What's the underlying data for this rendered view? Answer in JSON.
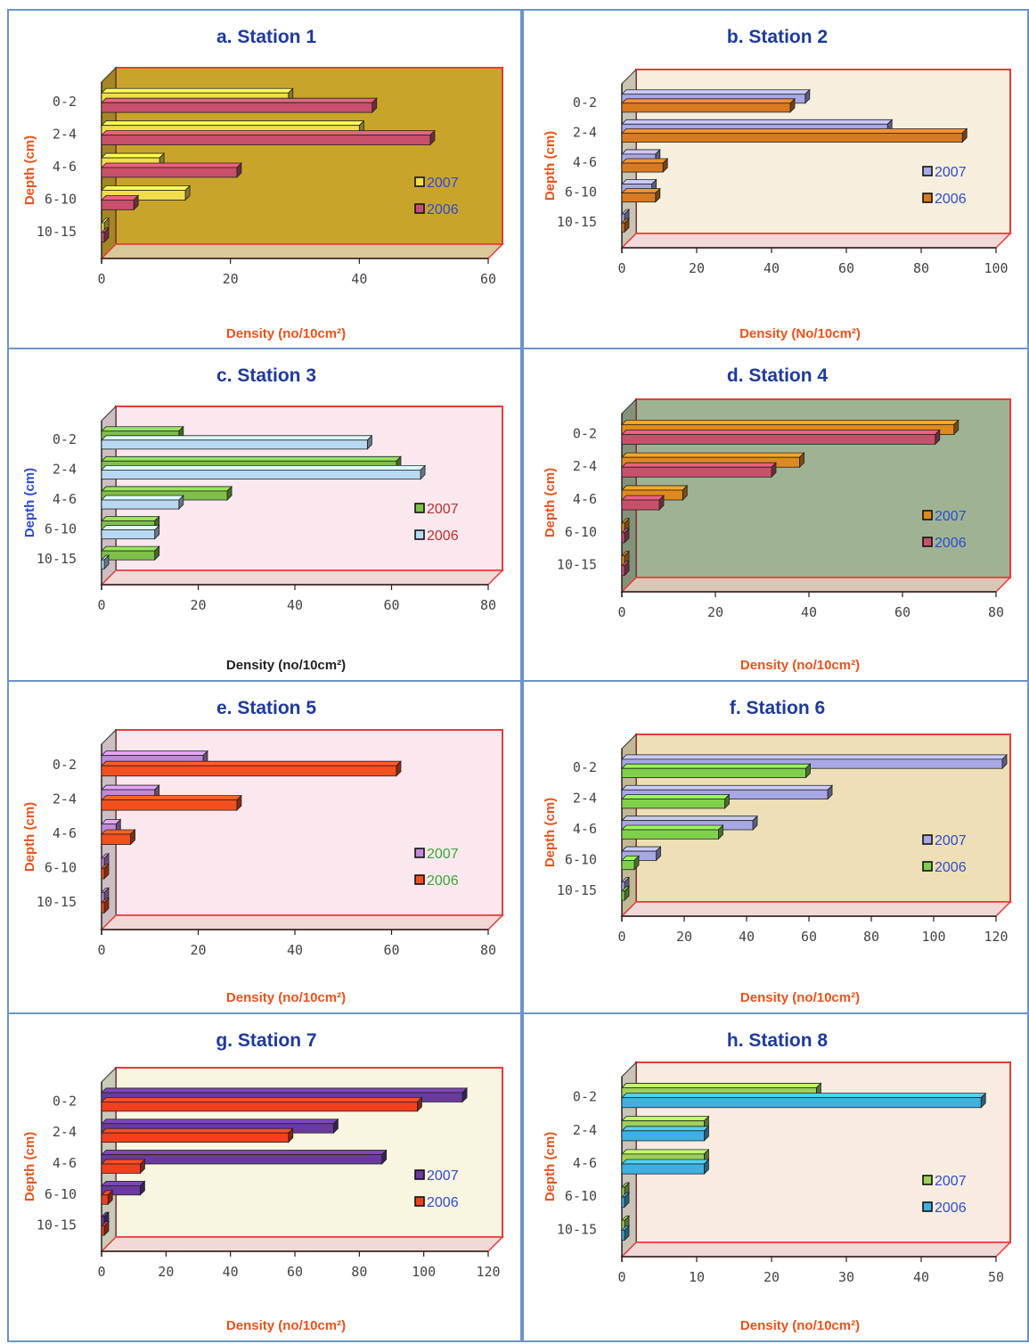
{
  "figure": {
    "panels": [
      {
        "title": "a. Station 1",
        "xlabel": "Density (no/10cm²)",
        "ylabel": "Depth (cm)",
        "label_color": "#e8531c",
        "wall": "#c9a42a",
        "floor": "#d8c89a",
        "frame": "#e83a3a",
        "legend_text_color": "#2d4bd1"
      },
      {
        "title": "b. Station 2",
        "xlabel": "Density (No/10cm²)",
        "ylabel": "Depth (cm)",
        "label_color": "#e8531c",
        "wall": "#f6efdd",
        "floor": "#f0d9d6",
        "frame": "#e83a3a",
        "legend_text_color": "#2d4bd1"
      },
      {
        "title": "c. Station 3",
        "xlabel": "Density (no/10cm²)",
        "ylabel": "Depth (cm)",
        "label_color": "#2d4bd1",
        "xlabel_color": "#222222",
        "wall": "#fbe8ee",
        "floor": "#f0d9d6",
        "frame": "#e83a3a",
        "legend_text_color": "#c22c2c"
      },
      {
        "title": "d. Station 4",
        "xlabel": "Density (no/10cm²)",
        "ylabel": "Depth (cm)",
        "label_color": "#e8531c",
        "wall": "#9fb393",
        "floor": "#d8c7b5",
        "frame": "#e83a3a",
        "legend_text_color": "#2d4bd1"
      },
      {
        "title": "e. Station 5",
        "xlabel": "Density (no/10cm²)",
        "ylabel": "Depth (cm)",
        "label_color": "#e8531c",
        "wall": "#fbe8ee",
        "floor": "#f0d9d6",
        "frame": "#e83a3a",
        "legend_text_color": "#3aa73a"
      },
      {
        "title": "f. Station 6",
        "xlabel": "Density (no/10cm²)",
        "ylabel": "Depth (cm)",
        "label_color": "#e8531c",
        "wall": "#eedfb6",
        "floor": "#f0d9d6",
        "frame": "#e83a3a",
        "legend_text_color": "#2d4bd1"
      },
      {
        "title": "g. Station 7",
        "xlabel": "Density (no/10cm²)",
        "ylabel": "Depth (cm)",
        "label_color": "#e8531c",
        "wall": "#f8f6e0",
        "floor": "#f0d9d6",
        "frame": "#e83a3a",
        "legend_text_color": "#2d4bd1"
      },
      {
        "title": "h. Station 8",
        "xlabel": "Density (no/10cm²)",
        "ylabel": "Depth (cm)",
        "label_color": "#e8531c",
        "wall": "#f8ece0",
        "floor": "#f0d9d6",
        "frame": "#e83a3a",
        "legend_text_color": "#2d4bd1"
      }
    ]
  },
  "chart_data": [
    {
      "type": "bar",
      "orientation": "horizontal",
      "title": "a. Station 1",
      "xlabel": "Density (no/10cm²)",
      "ylabel": "Depth (cm)",
      "categories": [
        "0-2",
        "2-4",
        "4-6",
        "6-10",
        "10-15"
      ],
      "xlim": [
        0,
        60
      ],
      "xticks": [
        0,
        20,
        40,
        60
      ],
      "legend": "right",
      "series": [
        {
          "name": "2007",
          "color": "#f2dd4a",
          "values": [
            29,
            40,
            9,
            13,
            0
          ]
        },
        {
          "name": "2006",
          "color": "#c8506a",
          "values": [
            42,
            51,
            21,
            5,
            0
          ]
        }
      ]
    },
    {
      "type": "bar",
      "orientation": "horizontal",
      "title": "b. Station 2",
      "xlabel": "Density (No/10cm²)",
      "ylabel": "Depth (cm)",
      "categories": [
        "0-2",
        "2-4",
        "4-6",
        "6-10",
        "10-15"
      ],
      "xlim": [
        0,
        100
      ],
      "xticks": [
        0,
        20,
        40,
        60,
        80,
        100
      ],
      "legend": "right",
      "series": [
        {
          "name": "2007",
          "color": "#a8a8e6",
          "values": [
            49,
            71,
            9,
            8,
            0
          ]
        },
        {
          "name": "2006",
          "color": "#d97a22",
          "values": [
            45,
            91,
            11,
            9,
            0
          ]
        }
      ]
    },
    {
      "type": "bar",
      "orientation": "horizontal",
      "title": "c. Station 3",
      "xlabel": "Density (no/10cm²)",
      "ylabel": "Depth (cm)",
      "categories": [
        "0-2",
        "2-4",
        "4-6",
        "6-10",
        "10-15"
      ],
      "xlim": [
        0,
        80
      ],
      "xticks": [
        0,
        20,
        40,
        60,
        80
      ],
      "legend": "right",
      "series": [
        {
          "name": "2007",
          "color": "#7fbf4a",
          "values": [
            16,
            61,
            26,
            11,
            11
          ]
        },
        {
          "name": "2006",
          "color": "#b9d8f2",
          "values": [
            55,
            66,
            16,
            11,
            0
          ]
        }
      ]
    },
    {
      "type": "bar",
      "orientation": "horizontal",
      "title": "d. Station 4",
      "xlabel": "Density (no/10cm²)",
      "ylabel": "Depth (cm)",
      "categories": [
        "0-2",
        "2-4",
        "4-6",
        "6-10",
        "10-15"
      ],
      "xlim": [
        0,
        80
      ],
      "xticks": [
        0,
        20,
        40,
        60,
        80
      ],
      "legend": "right",
      "series": [
        {
          "name": "2007",
          "color": "#df8a1e",
          "values": [
            71,
            38,
            13,
            0,
            0
          ]
        },
        {
          "name": "2006",
          "color": "#c8506a",
          "values": [
            67,
            32,
            8,
            0,
            0
          ]
        }
      ]
    },
    {
      "type": "bar",
      "orientation": "horizontal",
      "title": "e. Station 5",
      "xlabel": "Density (no/10cm²)",
      "ylabel": "Depth (cm)",
      "categories": [
        "0-2",
        "2-4",
        "4-6",
        "6-10",
        "10-15"
      ],
      "xlim": [
        0,
        80
      ],
      "xticks": [
        0,
        20,
        40,
        60,
        80
      ],
      "legend": "right",
      "series": [
        {
          "name": "2007",
          "color": "#c08ad8",
          "values": [
            21,
            11,
            3,
            0,
            0
          ]
        },
        {
          "name": "2006",
          "color": "#f2501e",
          "values": [
            61,
            28,
            6,
            0,
            0
          ]
        }
      ]
    },
    {
      "type": "bar",
      "orientation": "horizontal",
      "title": "f. Station 6",
      "xlabel": "Density (no/10cm²)",
      "ylabel": "Depth (cm)",
      "categories": [
        "0-2",
        "2-4",
        "4-6",
        "6-10",
        "10-15"
      ],
      "xlim": [
        0,
        120
      ],
      "xticks": [
        0,
        20,
        40,
        60,
        80,
        100,
        120
      ],
      "legend": "right",
      "series": [
        {
          "name": "2007",
          "color": "#a8a8e6",
          "values": [
            122,
            66,
            42,
            11,
            0
          ]
        },
        {
          "name": "2006",
          "color": "#7fd04a",
          "values": [
            59,
            33,
            31,
            4,
            0
          ]
        }
      ]
    },
    {
      "type": "bar",
      "orientation": "horizontal",
      "title": "g. Station 7",
      "xlabel": "Density (no/10cm²)",
      "ylabel": "Depth (cm)",
      "categories": [
        "0-2",
        "2-4",
        "4-6",
        "6-10",
        "10-15"
      ],
      "xlim": [
        0,
        120
      ],
      "xticks": [
        0,
        20,
        40,
        60,
        80,
        100,
        120
      ],
      "legend": "right",
      "series": [
        {
          "name": "2007",
          "color": "#6a3a9c",
          "values": [
            112,
            72,
            87,
            12,
            0
          ]
        },
        {
          "name": "2006",
          "color": "#f2401e",
          "values": [
            98,
            58,
            12,
            2,
            0
          ]
        }
      ]
    },
    {
      "type": "bar",
      "orientation": "horizontal",
      "title": "h. Station 8",
      "xlabel": "Density (no/10cm²)",
      "ylabel": "Depth (cm)",
      "categories": [
        "0-2",
        "2-4",
        "4-6",
        "6-10",
        "10-15"
      ],
      "xlim": [
        0,
        50
      ],
      "xticks": [
        0,
        10,
        20,
        30,
        40,
        50
      ],
      "legend": "right",
      "series": [
        {
          "name": "2007",
          "color": "#9fd05a",
          "values": [
            26,
            11,
            11,
            0,
            0
          ]
        },
        {
          "name": "2006",
          "color": "#3fb0e0",
          "values": [
            48,
            11,
            11,
            0,
            0
          ]
        }
      ]
    }
  ]
}
